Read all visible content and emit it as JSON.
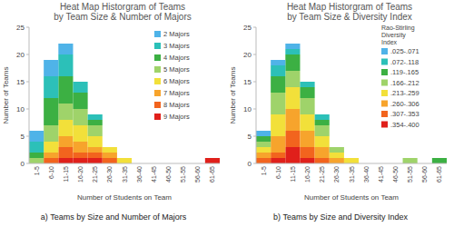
{
  "chart_data": [
    {
      "type": "bar",
      "stacked": true,
      "grid": false,
      "legend": "right",
      "title": "Heat Map Historgram of Teams",
      "subtitle": "by Team Size & Number of Majors",
      "x_label": "Number of Students on Team",
      "y_label": "Number of Teams",
      "caption": "a) Teams by Size and Number of Majors",
      "categories": [
        "1-5",
        "6-10",
        "11-15",
        "16-20",
        "21-25",
        "26-30",
        "31-35",
        "36-40",
        "41-45",
        "46-50",
        "51-55",
        "56-60",
        "61-65"
      ],
      "ylim": [
        0,
        25
      ],
      "yticks": [
        0,
        5,
        10,
        15,
        20,
        25
      ],
      "series": [
        {
          "name": "2 Majors",
          "color": "#4fb3e8",
          "values": [
            2,
            3,
            2,
            0,
            0,
            0,
            0,
            0,
            0,
            0,
            0,
            0,
            0
          ]
        },
        {
          "name": "3 Majors",
          "color": "#2cc0b8",
          "values": [
            2,
            4,
            4,
            2,
            1,
            0,
            0,
            0,
            0,
            0,
            0,
            0,
            0
          ]
        },
        {
          "name": "4 Majors",
          "color": "#3cb043",
          "values": [
            1,
            5,
            5,
            3,
            1,
            0,
            0,
            0,
            0,
            0,
            0,
            0,
            0
          ]
        },
        {
          "name": "5 Majors",
          "color": "#9fd36a",
          "values": [
            1,
            3,
            3,
            3,
            2,
            0,
            0,
            0,
            0,
            0,
            0,
            0,
            0
          ]
        },
        {
          "name": "6 Majors",
          "color": "#f2e03a",
          "values": [
            0,
            2,
            3,
            3,
            2,
            1,
            1,
            0,
            0,
            0,
            0,
            0,
            0
          ]
        },
        {
          "name": "7 Majors",
          "color": "#f7a42c",
          "values": [
            0,
            1,
            2,
            2,
            1,
            1,
            0,
            0,
            0,
            0,
            0,
            0,
            0
          ]
        },
        {
          "name": "8 Majors",
          "color": "#f2641e",
          "values": [
            0,
            1,
            2,
            1,
            1,
            1,
            0,
            0,
            0,
            0,
            0,
            0,
            0
          ]
        },
        {
          "name": "9 Majors",
          "color": "#e0201b",
          "values": [
            0,
            0,
            1,
            1,
            1,
            0,
            0,
            0,
            0,
            0,
            0,
            0,
            1
          ]
        }
      ]
    },
    {
      "type": "bar",
      "stacked": true,
      "grid": false,
      "legend": "right",
      "title": "Heat Map Historgram of Teams",
      "subtitle": "by Team Size & Diversity Index",
      "x_label": "Number of Students on Team",
      "y_label": "Number of Teams",
      "caption": "b) Teams by Size and Diversity Index",
      "legend_title": [
        "Rao-Stirling",
        "Diversity",
        "Index"
      ],
      "categories": [
        "1-5",
        "6-10",
        "11-15",
        "16-20",
        "21-25",
        "26-30",
        "31-35",
        "36-40",
        "41-45",
        "46-50",
        "51-55",
        "56-60",
        "61-65"
      ],
      "ylim": [
        0,
        25
      ],
      "yticks": [
        0,
        5,
        10,
        15,
        20,
        25
      ],
      "series": [
        {
          "name": ".025-.071",
          "color": "#4fb3e8",
          "values": [
            1,
            1,
            1,
            0,
            0,
            0,
            0,
            0,
            0,
            0,
            0,
            0,
            0
          ]
        },
        {
          "name": ".072-.118",
          "color": "#2cc0b8",
          "values": [
            0,
            2,
            1,
            1,
            1,
            0,
            0,
            0,
            0,
            0,
            0,
            0,
            0
          ]
        },
        {
          "name": ".119-.165",
          "color": "#3cb043",
          "values": [
            1,
            3,
            3,
            2,
            1,
            0,
            0,
            0,
            0,
            0,
            0,
            0,
            1
          ]
        },
        {
          "name": ".166-.212",
          "color": "#9fd36a",
          "values": [
            1,
            4,
            3,
            3,
            2,
            1,
            0,
            0,
            0,
            0,
            1,
            0,
            0
          ]
        },
        {
          "name": ".213-.259",
          "color": "#f2e03a",
          "values": [
            1,
            4,
            4,
            3,
            2,
            1,
            1,
            0,
            0,
            0,
            0,
            0,
            0
          ]
        },
        {
          "name": ".260-.306",
          "color": "#f7a42c",
          "values": [
            1,
            3,
            4,
            3,
            2,
            1,
            0,
            0,
            0,
            0,
            0,
            0,
            0
          ]
        },
        {
          "name": ".307-.353",
          "color": "#f2641e",
          "values": [
            1,
            1,
            3,
            2,
            1,
            0,
            0,
            0,
            0,
            0,
            0,
            0,
            0
          ]
        },
        {
          "name": ".354-.400",
          "color": "#e0201b",
          "values": [
            0,
            1,
            3,
            1,
            0,
            0,
            0,
            0,
            0,
            0,
            0,
            0,
            0
          ]
        }
      ]
    }
  ]
}
